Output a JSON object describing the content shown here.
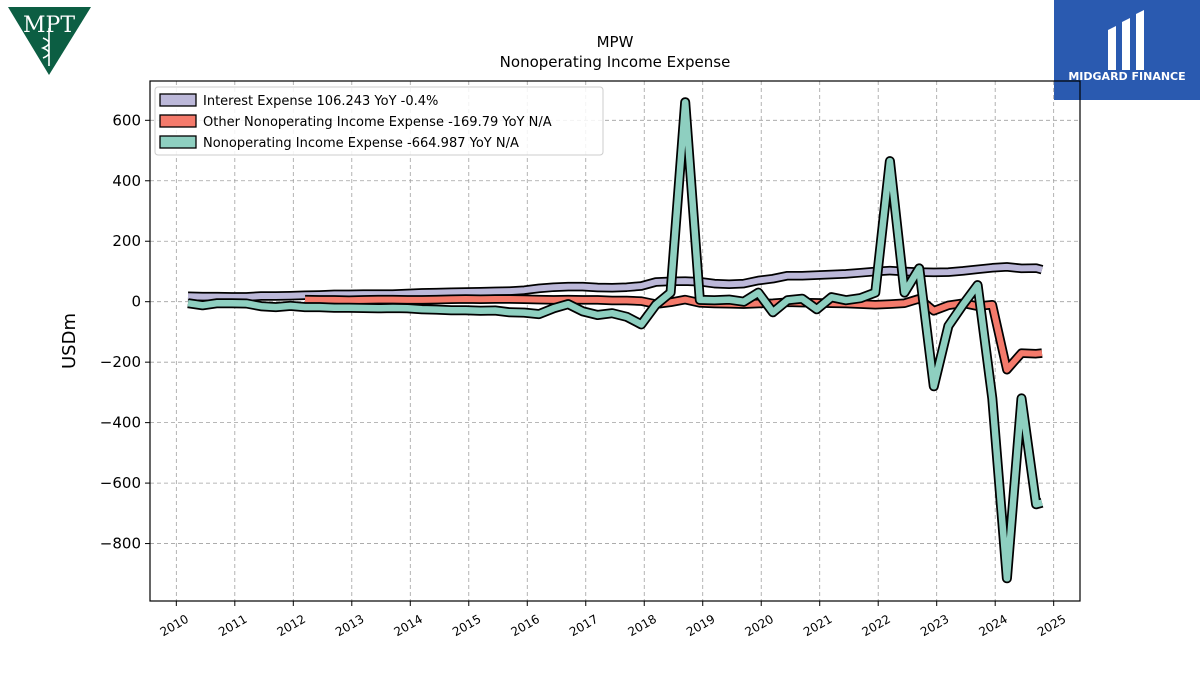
{
  "logos": {
    "company_logo_text": "MPT",
    "brand_name": "MIDGARD FINANCE"
  },
  "colors": {
    "interest": "#bcb8d9",
    "other": "#f47a6b",
    "nonop": "#8ecfc0",
    "outline": "#000000",
    "grid": "#a0a0a0",
    "company_logo": "#0c5e43",
    "brand_bg": "#2a5ab0"
  },
  "chart_data": {
    "type": "line",
    "title": "MPW",
    "subtitle": "Nonoperating Income Expense",
    "xlabel": "",
    "ylabel": "USDm",
    "ylim": [
      -990,
      730
    ],
    "xlim": [
      2009.55,
      2025.45
    ],
    "yticks": [
      600,
      400,
      200,
      0,
      -200,
      -400,
      -600,
      -800
    ],
    "ytick_labels": [
      "600",
      "400",
      "200",
      "0",
      "−200",
      "−400",
      "−600",
      "−800"
    ],
    "xticks": [
      "2010",
      "2011",
      "2012",
      "2013",
      "2014",
      "2015",
      "2016",
      "2017",
      "2018",
      "2019",
      "2020",
      "2021",
      "2022",
      "2023",
      "2024",
      "2025"
    ],
    "grid": true,
    "legend_position": "upper-left",
    "series": [
      {
        "name": "Interest Expense  106.243 YoY -0.4%",
        "x": [
          2010.2,
          2010.45,
          2010.7,
          2010.95,
          2011.2,
          2011.45,
          2011.7,
          2011.95,
          2012.2,
          2012.45,
          2012.7,
          2012.95,
          2013.2,
          2013.45,
          2013.7,
          2013.95,
          2014.2,
          2014.45,
          2014.7,
          2014.95,
          2015.2,
          2015.45,
          2015.7,
          2015.95,
          2016.2,
          2016.45,
          2016.7,
          2016.95,
          2017.2,
          2017.45,
          2017.7,
          2017.95,
          2018.2,
          2018.45,
          2018.7,
          2018.95,
          2019.2,
          2019.45,
          2019.7,
          2019.95,
          2020.2,
          2020.45,
          2020.7,
          2020.95,
          2021.2,
          2021.45,
          2021.7,
          2021.95,
          2022.2,
          2022.45,
          2022.7,
          2022.95,
          2023.2,
          2023.45,
          2023.7,
          2023.95,
          2024.2,
          2024.45,
          2024.7,
          2024.8
        ],
        "y": [
          18,
          17,
          17,
          16,
          16,
          19,
          19,
          20,
          21,
          22,
          24,
          24,
          25,
          25,
          25,
          27,
          29,
          30,
          31,
          32,
          33,
          34,
          35,
          38,
          44,
          48,
          50,
          50,
          47,
          46,
          48,
          52,
          65,
          67,
          68,
          66,
          60,
          58,
          60,
          70,
          76,
          86,
          86,
          88,
          90,
          92,
          96,
          100,
          103,
          100,
          98,
          97,
          98,
          102,
          107,
          112,
          115,
          110,
          111,
          106
        ]
      },
      {
        "name": "Other Nonoperating Income Expense  -169.79 YoY N/A",
        "x": [
          2012.2,
          2012.45,
          2012.7,
          2012.95,
          2013.2,
          2013.45,
          2013.7,
          2013.95,
          2014.2,
          2014.45,
          2014.7,
          2014.95,
          2015.2,
          2015.45,
          2015.7,
          2015.95,
          2016.2,
          2016.45,
          2016.7,
          2016.95,
          2017.2,
          2017.45,
          2017.7,
          2017.95,
          2018.2,
          2018.45,
          2018.7,
          2018.95,
          2019.2,
          2019.45,
          2019.7,
          2019.95,
          2020.2,
          2020.45,
          2020.7,
          2020.95,
          2021.2,
          2021.45,
          2021.7,
          2021.95,
          2022.2,
          2022.45,
          2022.7,
          2022.95,
          2023.2,
          2023.45,
          2023.7,
          2023.95,
          2024.2,
          2024.45,
          2024.7,
          2024.8
        ],
        "y": [
          7,
          6,
          6,
          5,
          6,
          7,
          7,
          6,
          6,
          7,
          8,
          9,
          8,
          9,
          9,
          8,
          7,
          6,
          7,
          6,
          6,
          4,
          4,
          2,
          -8,
          -2,
          7,
          -4,
          -6,
          -7,
          -8,
          -6,
          -5,
          -2,
          -3,
          -4,
          -5,
          -6,
          -8,
          -10,
          -8,
          -5,
          10,
          -30,
          -12,
          -5,
          -15,
          -10,
          -225,
          -170,
          -172,
          -170
        ]
      },
      {
        "name": "Nonoperating Income Expense  -664.987 YoY N/A",
        "x": [
          2010.2,
          2010.45,
          2010.7,
          2010.95,
          2011.2,
          2011.45,
          2011.7,
          2011.95,
          2012.2,
          2012.45,
          2012.7,
          2012.95,
          2013.2,
          2013.45,
          2013.7,
          2013.95,
          2014.2,
          2014.45,
          2014.7,
          2014.95,
          2015.2,
          2015.45,
          2015.7,
          2015.95,
          2016.2,
          2016.45,
          2016.7,
          2016.95,
          2017.2,
          2017.45,
          2017.7,
          2017.95,
          2018.2,
          2018.45,
          2018.7,
          2018.95,
          2019.2,
          2019.45,
          2019.7,
          2019.95,
          2020.2,
          2020.45,
          2020.7,
          2020.95,
          2021.2,
          2021.45,
          2021.7,
          2021.95,
          2022.2,
          2022.45,
          2022.7,
          2022.95,
          2023.2,
          2023.45,
          2023.7,
          2023.95,
          2024.2,
          2024.45,
          2024.7,
          2024.8
        ],
        "y": [
          -5,
          -12,
          -5,
          -5,
          -6,
          -15,
          -18,
          -14,
          -18,
          -18,
          -20,
          -20,
          -21,
          -22,
          -21,
          -22,
          -25,
          -26,
          -28,
          -28,
          -30,
          -29,
          -35,
          -36,
          -41,
          -22,
          -8,
          -32,
          -44,
          -38,
          -50,
          -75,
          -10,
          30,
          660,
          6,
          5,
          7,
          0,
          30,
          -35,
          5,
          10,
          -25,
          15,
          5,
          12,
          30,
          465,
          30,
          110,
          -280,
          -80,
          -10,
          55,
          -320,
          -915,
          -320,
          -670,
          -665
        ]
      }
    ]
  }
}
